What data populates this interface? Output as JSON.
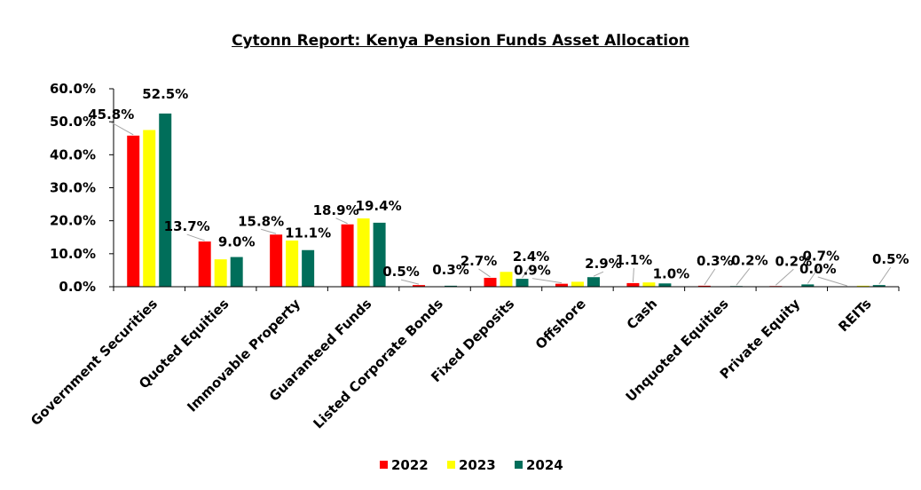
{
  "chart_data": {
    "type": "bar",
    "title": "Cytonn Report: Kenya Pension Funds Asset Allocation",
    "xlabel": "",
    "ylabel": "",
    "ylim": [
      0,
      60
    ],
    "yticks": [
      "0.0%",
      "10.0%",
      "20.0%",
      "30.0%",
      "40.0%",
      "50.0%",
      "60.0%"
    ],
    "categories": [
      "Government Securities",
      "Quoted Equities",
      "Immovable Property",
      "Guaranteed Funds",
      "Listed Corporate Bonds",
      "Fixed Deposits",
      "Offshore",
      "Cash",
      "Unquoted Equities",
      "Private Equity",
      "REITs"
    ],
    "series": [
      {
        "name": "2022",
        "color": "#ff0000",
        "values": [
          45.8,
          13.7,
          15.8,
          18.9,
          0.5,
          2.7,
          0.9,
          1.1,
          0.3,
          0.2,
          0.0
        ]
      },
      {
        "name": "2023",
        "color": "#ffff00",
        "values": [
          47.5,
          8.3,
          14.0,
          20.7,
          0.1,
          4.5,
          1.5,
          1.3,
          0.1,
          0.1,
          0.3
        ]
      },
      {
        "name": "2024",
        "color": "#006e5a",
        "values": [
          52.5,
          9.0,
          11.1,
          19.4,
          0.3,
          2.4,
          2.9,
          1.0,
          0.2,
          0.7,
          0.5
        ]
      }
    ],
    "data_labels": [
      {
        "text": "45.8%",
        "category": "Government Securities",
        "series": "2022"
      },
      {
        "text": "52.5%",
        "category": "Government Securities",
        "series": "2024"
      },
      {
        "text": "13.7%",
        "category": "Quoted Equities",
        "series": "2022"
      },
      {
        "text": "9.0%",
        "category": "Quoted Equities",
        "series": "2024"
      },
      {
        "text": "15.8%",
        "category": "Immovable Property",
        "series": "2022"
      },
      {
        "text": "11.1%",
        "category": "Immovable Property",
        "series": "2024"
      },
      {
        "text": "18.9%",
        "category": "Guaranteed Funds",
        "series": "2022"
      },
      {
        "text": "19.4%",
        "category": "Guaranteed Funds",
        "series": "2024"
      },
      {
        "text": "0.5%",
        "category": "Listed Corporate Bonds",
        "series": "2022"
      },
      {
        "text": "0.3%",
        "category": "Listed Corporate Bonds",
        "series": "2024"
      },
      {
        "text": "2.7%",
        "category": "Fixed Deposits",
        "series": "2022"
      },
      {
        "text": "2.4%",
        "category": "Fixed Deposits",
        "series": "2024"
      },
      {
        "text": "0.9%",
        "category": "Offshore",
        "series": "2022"
      },
      {
        "text": "2.9%",
        "category": "Offshore",
        "series": "2024"
      },
      {
        "text": "1.1%",
        "category": "Cash",
        "series": "2022"
      },
      {
        "text": "1.0%",
        "category": "Cash",
        "series": "2024"
      },
      {
        "text": "0.3%",
        "category": "Unquoted Equities",
        "series": "2022"
      },
      {
        "text": "0.2%",
        "category": "Unquoted Equities",
        "series": "2024"
      },
      {
        "text": "0.2%",
        "category": "Private Equity",
        "series": "2022"
      },
      {
        "text": "0.7%",
        "category": "Private Equity",
        "series": "2024"
      },
      {
        "text": "0.0%",
        "category": "REITs",
        "series": "2022"
      },
      {
        "text": "0.5%",
        "category": "REITs",
        "series": "2024"
      }
    ],
    "legend": {
      "position": "bottom",
      "entries": [
        "2022",
        "2023",
        "2024"
      ]
    },
    "grid": false
  }
}
